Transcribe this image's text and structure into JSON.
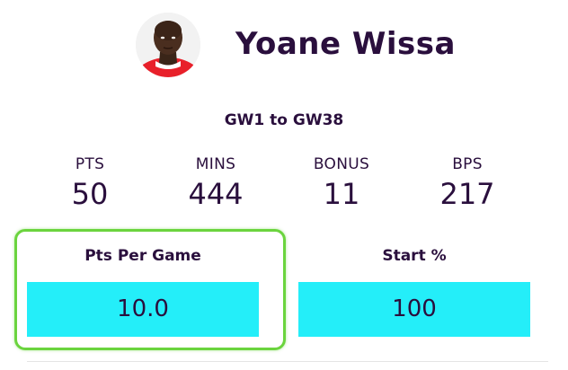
{
  "player": {
    "name": "Yoane Wissa",
    "avatar_icon": "player-avatar-icon"
  },
  "range": {
    "label": "GW1 to GW38"
  },
  "stats": [
    {
      "label": "PTS",
      "value": "50"
    },
    {
      "label": "MINS",
      "value": "444"
    },
    {
      "label": "BONUS",
      "value": "11"
    },
    {
      "label": "BPS",
      "value": "217"
    }
  ],
  "panels": [
    {
      "label": "Pts Per Game",
      "value": "10.0"
    },
    {
      "label": "Start %",
      "value": "100"
    }
  ],
  "colors": {
    "text": "#2a0f3d",
    "value_box": "#24eef9",
    "highlight": "#6bd43e",
    "shirt": "#e8202a"
  }
}
